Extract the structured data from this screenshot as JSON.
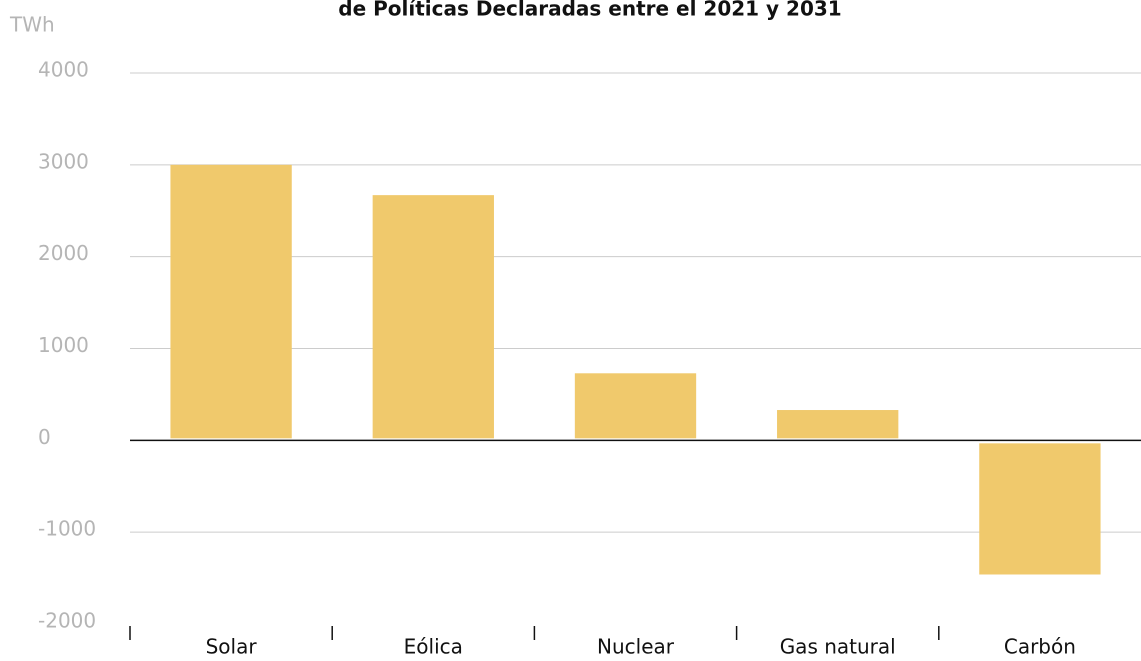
{
  "chart_data": {
    "type": "bar",
    "title": "de Políticas Declaradas entre el 2021 y 2031",
    "y_label": "TWh",
    "categories": [
      "Solar",
      "Eólica",
      "Nuclear",
      "Gas natural",
      "Carbón"
    ],
    "values": [
      3000,
      2670,
      730,
      330,
      -1450
    ],
    "color": "#f0c96c",
    "ylim": [
      -2000,
      4000
    ],
    "yticks": [
      -2000,
      -1000,
      0,
      1000,
      2000,
      3000,
      4000
    ],
    "grid": true
  }
}
